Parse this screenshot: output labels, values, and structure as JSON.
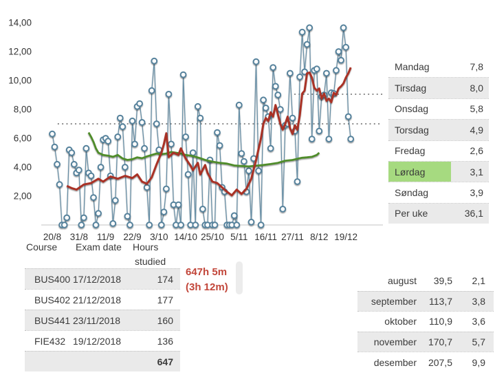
{
  "colors": {
    "scatter": "#56829c",
    "scatter_fill": "#fdfdfd",
    "average_line": "#a93328",
    "trend_line": "#4f8c2a",
    "goal_dots": "#8a8a8a",
    "axis_line": "#cfcfcf",
    "row_shade": "#eaeaea",
    "highlight_green": "#a6da80",
    "annotation_red": "#c2463a",
    "text": "#3a3a3a"
  },
  "chart_data": {
    "type": "scatter",
    "title": "",
    "xlabel": "",
    "ylabel": "",
    "ylim": [
      0,
      14.7
    ],
    "grid": false,
    "legend": "none",
    "y_ticks": [
      {
        "v": 2,
        "label": "2,00"
      },
      {
        "v": 4,
        "label": "4,00"
      },
      {
        "v": 6,
        "label": "6,00"
      },
      {
        "v": 8,
        "label": "8,00"
      },
      {
        "v": 10,
        "label": "10,00"
      },
      {
        "v": 12,
        "label": "12,00"
      },
      {
        "v": 14,
        "label": "14,00"
      }
    ],
    "x_ticks": [
      {
        "day": 0,
        "label": "20/8"
      },
      {
        "day": 11,
        "label": "31/8"
      },
      {
        "day": 22,
        "label": "11/9"
      },
      {
        "day": 33,
        "label": "22/9"
      },
      {
        "day": 44,
        "label": "3/10"
      },
      {
        "day": 55,
        "label": "14/10"
      },
      {
        "day": 66,
        "label": "25/10"
      },
      {
        "day": 77,
        "label": "5/11"
      },
      {
        "day": 88,
        "label": "16/11"
      },
      {
        "day": 99,
        "label": "27/11"
      },
      {
        "day": 110,
        "label": "8/12"
      },
      {
        "day": 121,
        "label": "19/12"
      }
    ],
    "goal_lines": [
      {
        "value": 7.0,
        "from_day": 2.5,
        "to_day": 136
      },
      {
        "value": 9.05,
        "from_day": 100,
        "to_day": 136
      }
    ],
    "series": [
      {
        "name": "daily-hours-studied",
        "type": "scatter-line",
        "values": [
          6.3,
          5.4,
          4.2,
          2.8,
          0,
          0,
          0.5,
          5.2,
          5.0,
          4.2,
          3.6,
          3.8,
          0,
          0.5,
          5.3,
          3.6,
          3.4,
          1.9,
          0,
          0.8,
          4.0,
          5.9,
          6.0,
          5.8,
          3.4,
          0.1,
          1.7,
          6.1,
          7.4,
          6.8,
          4.0,
          0.6,
          0,
          7.2,
          5.6,
          8.2,
          8.4,
          7.1,
          5.3,
          2.6,
          0,
          9.3,
          11.35,
          7.0,
          5.2,
          0,
          0.9,
          2.5,
          9.05,
          5.6,
          1.4,
          0,
          1.4,
          0,
          10.4,
          6.1,
          3.5,
          0,
          5.0,
          0,
          8.2,
          7.4,
          1.1,
          0,
          0,
          4.5,
          0,
          0,
          6.4,
          5.5,
          2.6,
          2.3,
          0,
          0,
          0,
          0.65,
          0,
          8.3,
          4.95,
          4.4,
          2.3,
          3.75,
          0.2,
          4.6,
          11.3,
          3.75,
          0,
          8.65,
          8.1,
          7.5,
          5.3,
          10.9,
          9.6,
          9.0,
          8.0,
          1.1,
          6.9,
          7.0,
          10.5,
          7.4,
          6.5,
          3.0,
          10.25,
          13.35,
          10.6,
          12.5,
          13.65,
          5.95,
          10.7,
          10.8,
          6.5,
          8.9,
          9.0,
          10.5,
          5.95,
          9.15,
          9.1,
          10.7,
          12.0,
          11.4,
          13.65,
          12.3,
          7.5,
          5.95
        ]
      },
      {
        "name": "moving-average-7d",
        "type": "line",
        "points": [
          [
            6,
            2.7
          ],
          [
            8,
            2.55
          ],
          [
            10,
            2.45
          ],
          [
            13,
            2.8
          ],
          [
            16,
            2.9
          ],
          [
            19,
            3.2
          ],
          [
            21,
            3.0
          ],
          [
            24,
            3.35
          ],
          [
            27,
            3.2
          ],
          [
            30,
            3.4
          ],
          [
            33,
            3.25
          ],
          [
            35,
            3.5
          ],
          [
            37,
            3.0
          ],
          [
            39,
            2.85
          ],
          [
            41,
            3.3
          ],
          [
            43,
            4.2
          ],
          [
            45,
            5.0
          ],
          [
            46,
            5.6
          ],
          [
            47,
            6.35
          ],
          [
            48,
            4.7
          ],
          [
            50,
            5.0
          ],
          [
            52,
            4.85
          ],
          [
            53,
            5.3
          ],
          [
            55,
            4.6
          ],
          [
            57,
            4.1
          ],
          [
            58,
            3.8
          ],
          [
            60,
            4.3
          ],
          [
            61,
            3.5
          ],
          [
            63,
            4.15
          ],
          [
            64,
            3.6
          ],
          [
            66,
            3.0
          ],
          [
            68,
            2.9
          ],
          [
            70,
            2.6
          ],
          [
            72,
            2.3
          ],
          [
            74,
            2.05
          ],
          [
            76,
            2.45
          ],
          [
            78,
            2.15
          ],
          [
            80,
            2.5
          ],
          [
            82,
            3.2
          ],
          [
            84,
            4.5
          ],
          [
            86,
            6.0
          ],
          [
            87,
            7.0
          ],
          [
            88,
            7.4
          ],
          [
            89,
            7.2
          ],
          [
            90,
            7.8
          ],
          [
            91,
            7.5
          ],
          [
            92,
            8.3
          ],
          [
            94,
            7.0
          ],
          [
            95,
            6.6
          ],
          [
            96,
            7.0
          ],
          [
            97,
            7.5
          ],
          [
            98,
            6.7
          ],
          [
            99,
            6.3
          ],
          [
            100,
            6.9
          ],
          [
            101,
            6.6
          ],
          [
            102,
            7.6
          ],
          [
            103,
            9.1
          ],
          [
            104,
            9.3
          ],
          [
            105,
            10.5
          ],
          [
            106,
            10.55
          ],
          [
            107,
            10.2
          ],
          [
            108,
            9.5
          ],
          [
            109,
            9.3
          ],
          [
            110,
            9.45
          ],
          [
            111,
            8.75
          ],
          [
            112,
            9.1
          ],
          [
            113,
            8.6
          ],
          [
            114,
            8.75
          ],
          [
            115,
            8.5
          ],
          [
            116,
            9.15
          ],
          [
            117,
            9.0
          ],
          [
            118,
            9.45
          ],
          [
            119,
            9.6
          ],
          [
            120,
            9.8
          ],
          [
            121,
            10.2
          ],
          [
            122,
            10.5
          ],
          [
            123,
            10.9
          ]
        ]
      },
      {
        "name": "trend-average",
        "type": "line",
        "points": [
          [
            15,
            6.4
          ],
          [
            16,
            6.1
          ],
          [
            17,
            5.75
          ],
          [
            18,
            5.3
          ],
          [
            19,
            5.0
          ],
          [
            21,
            4.85
          ],
          [
            23,
            4.8
          ],
          [
            25,
            4.72
          ],
          [
            27,
            4.85
          ],
          [
            29,
            4.6
          ],
          [
            31,
            4.5
          ],
          [
            33,
            4.55
          ],
          [
            35,
            4.68
          ],
          [
            37,
            4.62
          ],
          [
            39,
            4.75
          ],
          [
            41,
            4.85
          ],
          [
            43,
            4.95
          ],
          [
            45,
            4.9
          ],
          [
            47,
            4.95
          ],
          [
            49,
            5.05
          ],
          [
            51,
            5.0
          ],
          [
            53,
            4.95
          ],
          [
            55,
            4.85
          ],
          [
            57,
            4.8
          ],
          [
            59,
            4.72
          ],
          [
            61,
            4.62
          ],
          [
            63,
            4.5
          ],
          [
            66,
            4.38
          ],
          [
            69,
            4.3
          ],
          [
            72,
            4.25
          ],
          [
            75,
            4.12
          ],
          [
            78,
            4.08
          ],
          [
            81,
            4.05
          ],
          [
            84,
            4.1
          ],
          [
            87,
            4.15
          ],
          [
            90,
            4.22
          ],
          [
            93,
            4.3
          ],
          [
            96,
            4.45
          ],
          [
            99,
            4.5
          ],
          [
            101,
            4.58
          ],
          [
            103,
            4.65
          ],
          [
            105,
            4.68
          ],
          [
            107,
            4.72
          ],
          [
            109,
            4.85
          ],
          [
            110,
            5.0
          ]
        ]
      }
    ]
  },
  "weekday_table": {
    "rows": [
      {
        "label": "Mandag",
        "value": "7,8",
        "shade": false,
        "highlight": false
      },
      {
        "label": "Tirsdag",
        "value": "8,0",
        "shade": true,
        "highlight": false
      },
      {
        "label": "Onsdag",
        "value": "5,8",
        "shade": false,
        "highlight": false
      },
      {
        "label": "Torsdag",
        "value": "4,9",
        "shade": true,
        "highlight": false
      },
      {
        "label": "Fredag",
        "value": "2,6",
        "shade": false,
        "highlight": false
      },
      {
        "label": "Lørdag",
        "value": "3,1",
        "shade": true,
        "highlight": true
      },
      {
        "label": "Søndag",
        "value": "3,9",
        "shade": false,
        "highlight": false
      },
      {
        "label": "Per uke",
        "value": "36,1",
        "shade": true,
        "highlight": false
      }
    ]
  },
  "course_table": {
    "headers": {
      "col1": "Course",
      "col2": "Exam date",
      "col3_line1": "Hours",
      "col3_line2": "studied"
    },
    "rows": [
      {
        "course": "BUS400",
        "exam_date": "17/12/2018",
        "hours": "174",
        "shade": true
      },
      {
        "course": "BUS402",
        "exam_date": "21/12/2018",
        "hours": "177",
        "shade": false
      },
      {
        "course": "BUS441",
        "exam_date": "23/11/2018",
        "hours": "160",
        "shade": true
      },
      {
        "course": "FIE432",
        "exam_date": "19/12/2018",
        "hours": "136",
        "shade": false
      }
    ],
    "total_row": {
      "course": "",
      "exam_date": "",
      "hours": "647",
      "shade": true
    }
  },
  "annotation": {
    "line1": "647h 5m",
    "line2": "(3h 12m)"
  },
  "month_table": {
    "rows": [
      {
        "month": "august",
        "total": "39,5",
        "avg": "2,1",
        "shade": false
      },
      {
        "month": "september",
        "total": "113,7",
        "avg": "3,8",
        "shade": true
      },
      {
        "month": "oktober",
        "total": "110,9",
        "avg": "3,6",
        "shade": false
      },
      {
        "month": "november",
        "total": "170,7",
        "avg": "5,7",
        "shade": true
      },
      {
        "month": "desember",
        "total": "207,5",
        "avg": "9,9",
        "shade": false
      }
    ]
  }
}
